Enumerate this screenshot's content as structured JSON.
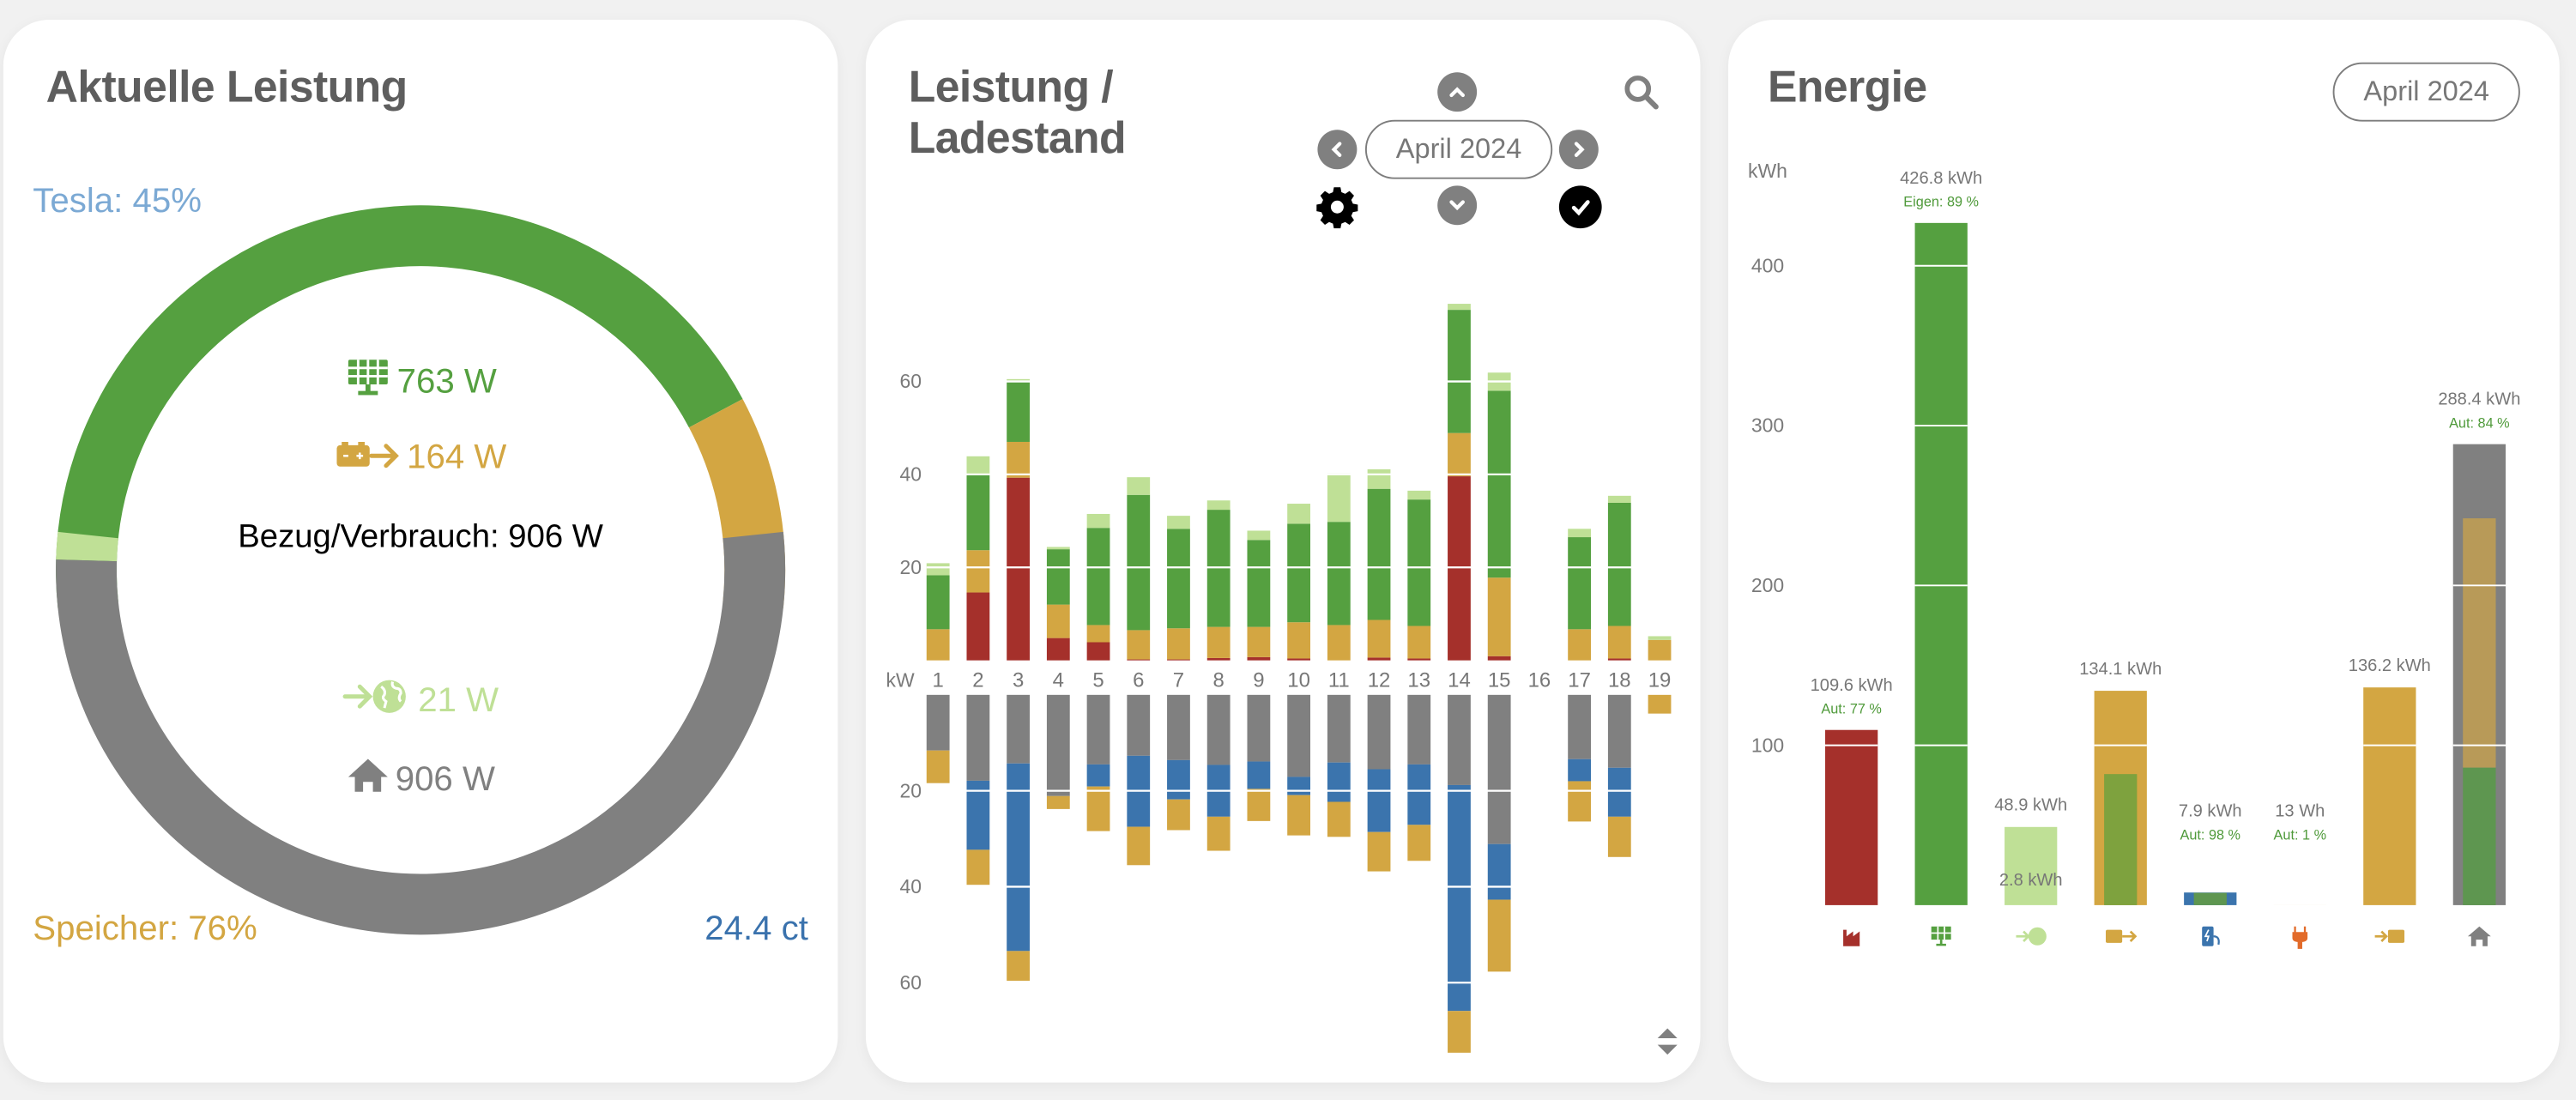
{
  "colors": {
    "pv": "#55a040",
    "pv_light": "#bfe096",
    "battery": "#d3a642",
    "grid": "#a5302b",
    "house": "#808080",
    "car": "#3b74ad",
    "plug": "#e26b2a",
    "tesla_label": "#7ba9d4",
    "price": "#3a72ad",
    "mixed_green": "#7ea23e",
    "house_batt": "#b89a58",
    "house_pv": "#5e9650"
  },
  "power_card": {
    "title": "Aktuelle Leistung",
    "tesla_label": "Tesla: 45%",
    "pv_value": "763 W",
    "battery_discharge_value": "164 W",
    "center_label": "Bezug/Verbrauch: 906 W",
    "feed_in_value": "21 W",
    "house_value": "906 W",
    "storage_label": "Speicher: 76%",
    "price_label": "24.4 ct",
    "gauge": {
      "upper": [
        {
          "name": "pv",
          "value": 763
        },
        {
          "name": "battery",
          "value": 164
        }
      ],
      "lower": [
        {
          "name": "feed_in",
          "value": 21
        },
        {
          "name": "house",
          "value": 906
        }
      ]
    }
  },
  "chart_card": {
    "title_line1": "Leistung /",
    "title_line2": "Ladestand",
    "period_label": "April 2024",
    "icons": [
      "chevron-up-icon",
      "chevron-left-icon",
      "chevron-right-icon",
      "chevron-down-icon",
      "gear-icon",
      "check-circle-icon",
      "search-icon",
      "sort-icon"
    ]
  },
  "energy_card": {
    "title": "Energie",
    "period_label": "April 2024"
  },
  "chart_data": [
    {
      "type": "bar",
      "title": "Leistung / Ladestand",
      "ylabel": "kW",
      "xlabel": "",
      "stacked": true,
      "diverging": true,
      "categories": [
        "1",
        "2",
        "3",
        "4",
        "5",
        "6",
        "7",
        "8",
        "9",
        "10",
        "11",
        "12",
        "13",
        "14",
        "15",
        "16",
        "17",
        "18",
        "19"
      ],
      "upper_ylim": [
        0,
        80
      ],
      "lower_ylim": [
        0,
        75
      ],
      "upper_yticks": [
        20,
        40,
        60
      ],
      "lower_yticks": [
        20,
        40,
        60
      ],
      "grid": true,
      "series_up": [
        {
          "name": "Netzbezug",
          "color_key": "grid",
          "values": [
            0,
            14.6,
            39.3,
            4.8,
            3.9,
            0.2,
            0.2,
            0.5,
            0.7,
            0.4,
            0,
            0.6,
            0.4,
            39.6,
            0.9,
            0,
            0,
            0.4,
            0
          ]
        },
        {
          "name": "Speicher-Entladung",
          "color_key": "battery",
          "values": [
            6.7,
            9.1,
            7.7,
            7.2,
            3.7,
            6.3,
            6.7,
            6.7,
            6.5,
            7.8,
            7.6,
            8.1,
            7.0,
            9.3,
            16.9,
            0,
            6.7,
            7.0,
            4.4
          ]
        },
        {
          "name": "PV",
          "color_key": "pv",
          "values": [
            11.6,
            16.3,
            13.2,
            11.9,
            20.9,
            29.1,
            21.4,
            25.2,
            18.7,
            21.2,
            22.2,
            28.2,
            27.2,
            26.5,
            40.2,
            0,
            19.8,
            26.5,
            0
          ]
        },
        {
          "name": "Einspeisung",
          "color_key": "pv_light",
          "values": [
            2.6,
            3.9,
            0.3,
            0.5,
            3.0,
            3.8,
            2.8,
            2.0,
            2.0,
            4.3,
            10.4,
            4.2,
            1.9,
            1.3,
            3.9,
            0,
            1.8,
            1.5,
            0.8
          ]
        }
      ],
      "series_down": [
        {
          "name": "Haus",
          "color_key": "house",
          "values": [
            11.6,
            17.9,
            14.3,
            21.1,
            14.5,
            12.7,
            13.6,
            14.6,
            13.9,
            17.1,
            14.1,
            15.5,
            14.5,
            18.8,
            31.1,
            0,
            13.4,
            15.2,
            0
          ]
        },
        {
          "name": "Auto",
          "color_key": "car",
          "values": [
            0,
            14.4,
            39.1,
            0,
            4.6,
            14.8,
            8.2,
            10.8,
            5.7,
            3.8,
            8.2,
            13.1,
            12.6,
            47.1,
            11.6,
            0,
            4.6,
            10.2,
            0
          ]
        },
        {
          "name": "Speicher-Ladung",
          "color_key": "battery",
          "values": [
            6.8,
            7.3,
            6.2,
            2.7,
            9.3,
            8.0,
            6.4,
            7.1,
            6.7,
            8.4,
            7.3,
            8.2,
            7.5,
            8.7,
            15.0,
            0,
            8.4,
            8.4,
            3.9
          ]
        }
      ]
    },
    {
      "type": "bar",
      "title": "Energie",
      "ylabel": "kWh",
      "xlabel": "",
      "ylim": [
        0,
        450
      ],
      "yticks": [
        100,
        200,
        300,
        400
      ],
      "grid": true,
      "categories": [
        "Netzbezug",
        "PV",
        "Einspeisung",
        "Speicher-Entladung",
        "Auto",
        "Steckdose",
        "Speicher-Ladung",
        "Haus"
      ],
      "category_icons": [
        "factory-icon",
        "solar-panel-icon",
        "feed-in-globe-icon",
        "battery-discharge-icon",
        "ev-charger-icon",
        "plug-icon",
        "battery-charge-icon",
        "house-icon"
      ],
      "bars": [
        {
          "value": 109.6,
          "label": "109.6 kWh",
          "sub_label": "Aut: 77 %",
          "color_key": "grid"
        },
        {
          "value": 426.8,
          "label": "426.8 kWh",
          "sub_label": "Eigen: 89 %",
          "color_key": "pv"
        },
        {
          "value": 48.9,
          "label": "48.9 kWh",
          "inner_label": "2.8 kWh",
          "color_key": "pv_light"
        },
        {
          "value": 134.1,
          "label": "134.1 kWh",
          "inner_value": 82,
          "inner_color_key": "mixed_green",
          "color_key": "battery"
        },
        {
          "value": 7.9,
          "label": "7.9 kWh",
          "sub_label": "Aut: 98 %",
          "inner_value": 7.7,
          "inner_color_key": "house_pv",
          "color_key": "car"
        },
        {
          "value": 0.013,
          "label": "13 Wh",
          "sub_label": "Aut: 1 %",
          "color_key": "plug"
        },
        {
          "value": 136.2,
          "label": "136.2 kWh",
          "color_key": "battery"
        },
        {
          "value": 288.4,
          "label": "288.4 kWh",
          "sub_label": "Aut: 84 %",
          "inner_value": 242,
          "inner_split": 86,
          "color_key": "house"
        }
      ]
    }
  ]
}
